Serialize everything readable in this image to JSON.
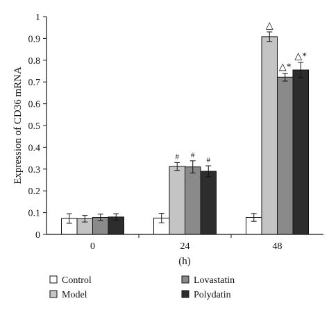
{
  "chart_data": {
    "type": "bar",
    "categories": [
      "0",
      "24",
      "48"
    ],
    "xlabel": "(h)",
    "ylabel": "Expression of CD36 mRNA",
    "ylim": [
      0,
      1
    ],
    "yticks": [
      "0",
      "0.1",
      "0.2",
      "0.3",
      "0.4",
      "0.5",
      "0.6",
      "0.7",
      "0.8",
      "0.9",
      "1"
    ],
    "grid": false,
    "legend_position": "bottom",
    "series": [
      {
        "name": "Control",
        "color": "#ffffff",
        "values": [
          0.073,
          0.075,
          0.078
        ],
        "errors": [
          0.022,
          0.022,
          0.018
        ],
        "annotations": [
          "",
          "",
          ""
        ]
      },
      {
        "name": "Model",
        "color": "#c4c4c4",
        "values": [
          0.072,
          0.312,
          0.908
        ],
        "errors": [
          0.015,
          0.018,
          0.022
        ],
        "annotations": [
          "",
          "#",
          "△"
        ]
      },
      {
        "name": "Lovastatin",
        "color": "#8a8a8a",
        "values": [
          0.078,
          0.31,
          0.722
        ],
        "errors": [
          0.015,
          0.028,
          0.018
        ],
        "annotations": [
          "",
          "#",
          "△*"
        ]
      },
      {
        "name": "Polydatin",
        "color": "#2d2d2d",
        "values": [
          0.08,
          0.29,
          0.755
        ],
        "errors": [
          0.015,
          0.025,
          0.035
        ],
        "annotations": [
          "",
          "#",
          "△*"
        ]
      }
    ]
  }
}
